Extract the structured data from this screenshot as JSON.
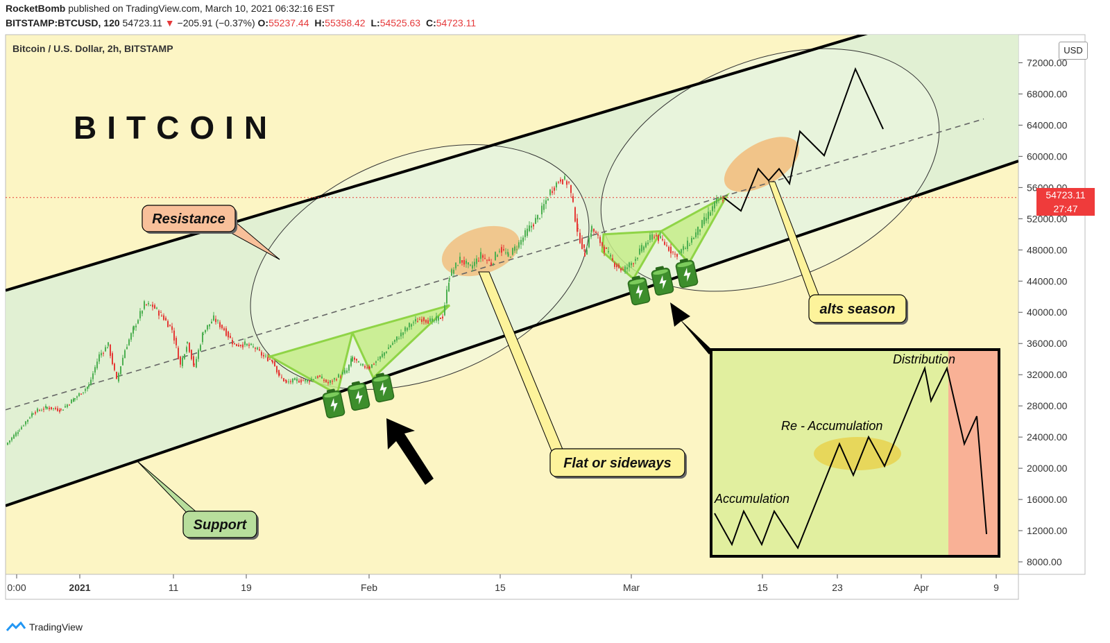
{
  "header": {
    "author": "RocketBomb",
    "published": "published on TradingView.com, March 10, 2021 06:32:16 EST",
    "symbol": "BITSTAMP:BTCUSD, 120",
    "last": "54723.11",
    "change": "−205.91 (−0.37%)",
    "o_label": "O:",
    "o": "55237.44",
    "h_label": "H:",
    "h": "55358.42",
    "l_label": "L:",
    "l": "54525.63",
    "c_label": "C:",
    "c": "54723.11"
  },
  "chart_data": {
    "type": "line",
    "title": "Bitcoin / U.S. Dollar, 2h, BITSTAMP",
    "big_label": "BITCOIN",
    "ylabel": "",
    "currency": "USD",
    "y_ticks": [
      "8000.00",
      "12000.00",
      "16000.00",
      "20000.00",
      "24000.00",
      "28000.00",
      "32000.00",
      "36000.00",
      "40000.00",
      "44000.00",
      "48000.00",
      "52000.00",
      "56000.00",
      "60000.00",
      "64000.00",
      "68000.00",
      "72000.00"
    ],
    "x_ticks": [
      "0:00",
      "2021",
      "11",
      "19",
      "Feb",
      "15",
      "Mar",
      "15",
      "23",
      "Apr",
      "9"
    ],
    "ylim": [
      6400,
      75600
    ],
    "xlim": [
      0,
      1460
    ],
    "last_price": "54723.11",
    "countdown": "27:47",
    "price_series": [
      [
        0,
        23000
      ],
      [
        20,
        25000
      ],
      [
        40,
        27200
      ],
      [
        60,
        27800
      ],
      [
        80,
        27500
      ],
      [
        100,
        29000
      ],
      [
        120,
        30600
      ],
      [
        135,
        34500
      ],
      [
        148,
        35800
      ],
      [
        160,
        31200
      ],
      [
        172,
        35200
      ],
      [
        185,
        38000
      ],
      [
        200,
        41000
      ],
      [
        212,
        40800
      ],
      [
        225,
        39600
      ],
      [
        240,
        37800
      ],
      [
        252,
        33200
      ],
      [
        262,
        36200
      ],
      [
        272,
        33000
      ],
      [
        285,
        37500
      ],
      [
        300,
        39200
      ],
      [
        315,
        37800
      ],
      [
        330,
        35800
      ],
      [
        345,
        35900
      ],
      [
        360,
        35400
      ],
      [
        372,
        34300
      ],
      [
        385,
        33800
      ],
      [
        395,
        31800
      ],
      [
        405,
        31000
      ],
      [
        420,
        31300
      ],
      [
        435,
        31200
      ],
      [
        450,
        31800
      ],
      [
        465,
        30900
      ],
      [
        480,
        31800
      ],
      [
        492,
        32500
      ],
      [
        500,
        34200
      ],
      [
        512,
        33100
      ],
      [
        525,
        33000
      ],
      [
        540,
        34200
      ],
      [
        555,
        35800
      ],
      [
        570,
        37200
      ],
      [
        585,
        38600
      ],
      [
        600,
        39200
      ],
      [
        615,
        38800
      ],
      [
        630,
        39500
      ],
      [
        640,
        44700
      ],
      [
        655,
        46800
      ],
      [
        670,
        45700
      ],
      [
        685,
        47300
      ],
      [
        700,
        46300
      ],
      [
        712,
        48200
      ],
      [
        725,
        47200
      ],
      [
        740,
        48800
      ],
      [
        755,
        50800
      ],
      [
        770,
        52500
      ],
      [
        785,
        55500
      ],
      [
        800,
        57200
      ],
      [
        812,
        56500
      ],
      [
        825,
        50200
      ],
      [
        835,
        47500
      ],
      [
        845,
        50800
      ],
      [
        860,
        48600
      ],
      [
        875,
        46500
      ],
      [
        890,
        45300
      ],
      [
        905,
        46600
      ],
      [
        920,
        48500
      ],
      [
        935,
        50000
      ],
      [
        950,
        48800
      ],
      [
        965,
        47400
      ],
      [
        980,
        48300
      ],
      [
        995,
        50100
      ],
      [
        1010,
        52100
      ],
      [
        1025,
        54200
      ],
      [
        1035,
        54723
      ]
    ],
    "channel": {
      "upper": [
        [
          0,
          42800
        ],
        [
          1300,
          77300
        ]
      ],
      "mid": [
        [
          0,
          27500
        ],
        [
          1410,
          64800
        ]
      ],
      "lower": [
        [
          0,
          15200
        ],
        [
          1460,
          59400
        ]
      ]
    },
    "projection": [
      [
        1035,
        54723
      ],
      [
        1060,
        53000
      ],
      [
        1085,
        58400
      ],
      [
        1100,
        56900
      ],
      [
        1115,
        58400
      ],
      [
        1130,
        56500
      ],
      [
        1145,
        63200
      ],
      [
        1180,
        60100
      ],
      [
        1225,
        71200
      ],
      [
        1265,
        63500
      ]
    ],
    "annotations": {
      "resistance": "Resistance",
      "support": "Support",
      "flat": "Flat or sideways",
      "alts": "alts season"
    },
    "inset": {
      "labels": {
        "accumulation": "Accumulation",
        "reaccumulation": "Re - Accumulation",
        "distribution": "Distribution"
      }
    }
  },
  "footer": {
    "brand": "TradingView"
  },
  "colors": {
    "background": "#fcf5c4",
    "channel_fill": "#dcefd6",
    "resistance_box": "#f8c09a",
    "support_box": "#b8de9c",
    "callout_yellow": "#fdf39b",
    "orange_ellipse": "#f3b874",
    "green_wedge": "#c5ec8a",
    "inset_green": "#e1ef9f",
    "inset_red": "#f9b196",
    "candle_up": "#4caf50",
    "candle_down": "#e53935"
  }
}
